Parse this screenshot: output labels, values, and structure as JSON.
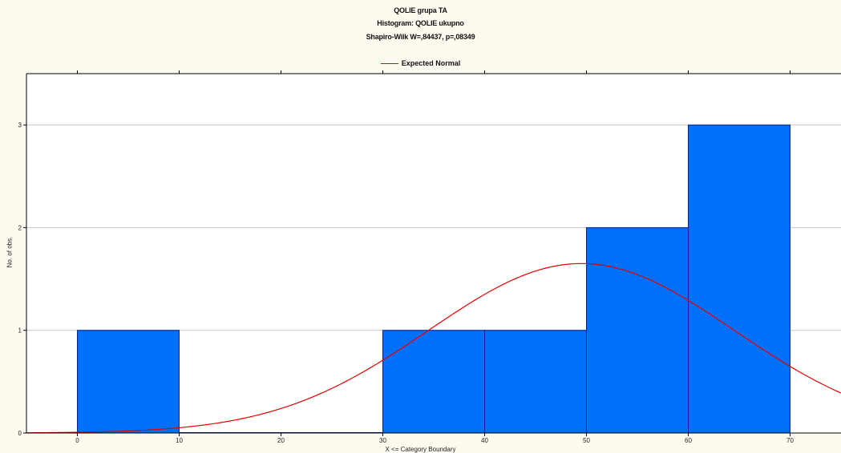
{
  "chart_data": {
    "type": "bar",
    "title": "QOLIE grupa TA",
    "subtitle": "Histogram: QOLIE ukupno",
    "test_label": "Shapiro-Wilk W=,84437, p=,08349",
    "legend": [
      "Expected Normal"
    ],
    "xlabel": "X <= Category Boundary",
    "ylabel": "No. of obs.",
    "xlim": [
      -5,
      75
    ],
    "ylim": [
      0,
      3.5
    ],
    "x_ticks": [
      0,
      10,
      20,
      30,
      40,
      50,
      60,
      70
    ],
    "y_ticks": [
      0,
      1,
      2,
      3
    ],
    "bins": [
      {
        "from": 0,
        "to": 10,
        "value": 1
      },
      {
        "from": 10,
        "to": 20,
        "value": 0
      },
      {
        "from": 20,
        "to": 30,
        "value": 0
      },
      {
        "from": 30,
        "to": 40,
        "value": 1
      },
      {
        "from": 40,
        "to": 50,
        "value": 1
      },
      {
        "from": 50,
        "to": 60,
        "value": 2
      },
      {
        "from": 60,
        "to": 70,
        "value": 3
      }
    ],
    "expected_normal": {
      "mean": 49.5,
      "peak": 1.65,
      "sd": 15
    },
    "grid": true,
    "colors": {
      "bar_fill": "#0070f8",
      "bar_stroke": "#0a1e8c",
      "curve": "#e00000",
      "grid": "#c8c8c8",
      "plot_bg": "#ffffff"
    }
  }
}
